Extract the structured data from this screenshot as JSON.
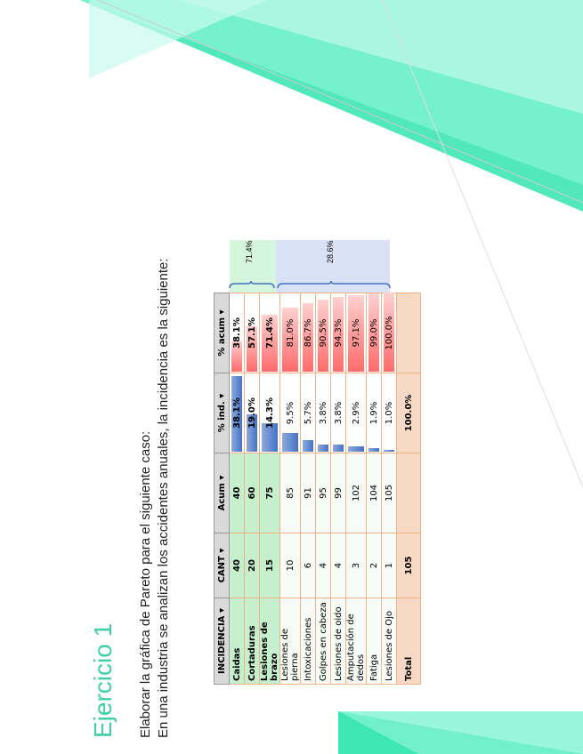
{
  "title": "Ejercicio 1",
  "lines": [
    "Elaborar la gráfica de Pareto para el siguiente caso:",
    "En una industria se analizan los accidentes anuales,  la incidencia es la siguiente:"
  ],
  "table": {
    "header": [
      "INCIDENCIA",
      "CANT",
      "Acum",
      "% ind.",
      "% acum"
    ],
    "rows": [
      [
        "Caidas",
        "40",
        "40",
        "38.1%",
        "38.1%"
      ],
      [
        "Cortaduras",
        "20",
        "60",
        "19.0%",
        "57.1%"
      ],
      [
        "Lesiones de brazo",
        "15",
        "75",
        "14.3%",
        "71.4%"
      ],
      [
        "Lesiones de pierna",
        "10",
        "85",
        "9.5%",
        "81.0%"
      ],
      [
        "Intoxicaciones",
        "6",
        "91",
        "5.7%",
        "86.7%"
      ],
      [
        "Golpes en cabeza",
        "4",
        "95",
        "3.8%",
        "90.5%"
      ],
      [
        "Lesiones de oido",
        "4",
        "99",
        "3.8%",
        "94.3%"
      ],
      [
        "Amputación de dedos",
        "3",
        "102",
        "2.9%",
        "97.1%"
      ],
      [
        "Fatiga",
        "2",
        "104",
        "1.9%",
        "99.0%"
      ],
      [
        "Lesiones de Ojo",
        "1",
        "105",
        "1.0%",
        "100.0%"
      ]
    ],
    "total": [
      "Total",
      "105",
      "",
      "100.0%",
      ""
    ]
  },
  "groups": [
    "71.4%",
    "28.6%"
  ]
}
